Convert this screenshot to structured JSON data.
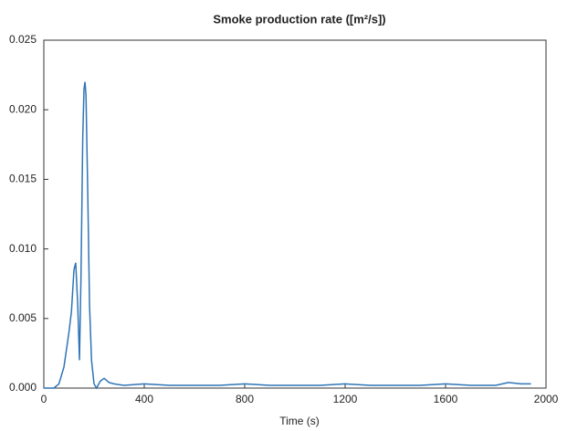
{
  "chart_data": {
    "type": "line",
    "title": "Smoke production rate ([m²/s])",
    "x_label": "Time (s)",
    "x": [
      0,
      40,
      60,
      80,
      100,
      110,
      120,
      127,
      135,
      142,
      148,
      155,
      160,
      164,
      168,
      175,
      182,
      190,
      200,
      210,
      225,
      240,
      260,
      280,
      320,
      400,
      500,
      600,
      700,
      800,
      900,
      1000,
      1100,
      1200,
      1300,
      1400,
      1500,
      1600,
      1700,
      1800,
      1850,
      1900,
      1940
    ],
    "series": [
      {
        "color": "#2e75b6",
        "values": [
          0,
          0,
          0.0003,
          0.0015,
          0.004,
          0.0055,
          0.0085,
          0.009,
          0.006,
          0.002,
          0.008,
          0.018,
          0.0215,
          0.022,
          0.021,
          0.014,
          0.006,
          0.002,
          0.0003,
          0,
          0.0005,
          0.0007,
          0.0004,
          0.0003,
          0.0002,
          0.0003,
          0.0002,
          0.0002,
          0.0002,
          0.0003,
          0.0002,
          0.0002,
          0.0002,
          0.0003,
          0.0002,
          0.0002,
          0.0002,
          0.0003,
          0.0002,
          0.0002,
          0.0004,
          0.0003,
          0.0003
        ]
      }
    ],
    "xlim": [
      0,
      2000
    ],
    "xticks": [
      0,
      400,
      800,
      1200,
      1600,
      2000
    ],
    "ylim": [
      0,
      0.025
    ],
    "yticks": [
      {
        "value": 0,
        "label": "0.000"
      },
      0.005,
      {
        "value": 0.01,
        "label": "0.010"
      },
      0.015,
      {
        "value": 0.02,
        "label": "0.020"
      },
      0.025
    ]
  }
}
